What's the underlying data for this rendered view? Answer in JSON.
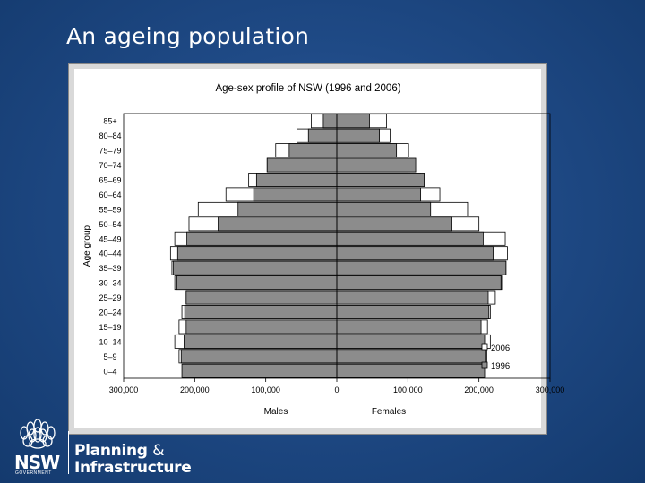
{
  "slide": {
    "title": "An ageing population"
  },
  "logo": {
    "nsw": "NSW",
    "government": "GOVERNMENT",
    "line1_word": "Planning",
    "line1_amp": "&",
    "line2": "Infrastructure",
    "icon": "waratah-flower-icon"
  },
  "chart_data": {
    "type": "bar",
    "orientation": "horizontal",
    "layout": "population-pyramid",
    "title": "Age-sex profile of NSW (1996 and 2006)",
    "ylabel": "Age group",
    "xlabel_left": "Males",
    "xlabel_right": "Females",
    "xlim": [
      -300000,
      300000
    ],
    "xticks": [
      -300000,
      -200000,
      -100000,
      0,
      100000,
      200000,
      300000
    ],
    "xtick_labels": [
      "300,000",
      "200,000",
      "100,000",
      "0",
      "100,000",
      "200,000",
      "300,000"
    ],
    "categories": [
      "0–4",
      "5–9",
      "10–14",
      "15–19",
      "20–24",
      "25–29",
      "30–34",
      "35–39",
      "40–44",
      "45–49",
      "50–54",
      "55–59",
      "60–64",
      "65–69",
      "70–74",
      "75–79",
      "80–84",
      "85+"
    ],
    "series": [
      {
        "name": "2006",
        "color": "#ffffff",
        "males": [
          217000,
          222000,
          228000,
          222000,
          218000,
          212000,
          228000,
          232000,
          234000,
          228000,
          208000,
          195000,
          156000,
          124000,
          98000,
          86000,
          56000,
          36000
        ],
        "females": [
          206000,
          211000,
          216000,
          212000,
          216000,
          223000,
          232000,
          238000,
          240000,
          237000,
          200000,
          184000,
          145000,
          118000,
          100000,
          101000,
          75000,
          70000
        ]
      },
      {
        "name": "1996",
        "color": "#8c8c8c",
        "males": [
          218000,
          219000,
          215000,
          212000,
          214000,
          212000,
          225000,
          230000,
          224000,
          211000,
          167000,
          139000,
          117000,
          113000,
          98000,
          67000,
          40000,
          19000
        ],
        "females": [
          208000,
          209000,
          208000,
          203000,
          214000,
          213000,
          231000,
          238000,
          220000,
          206000,
          162000,
          132000,
          118000,
          123000,
          111000,
          84000,
          60000,
          46000
        ]
      }
    ],
    "legend": {
      "entries": [
        "2006",
        "1996"
      ],
      "position": "bottom-right"
    },
    "grid": false
  }
}
